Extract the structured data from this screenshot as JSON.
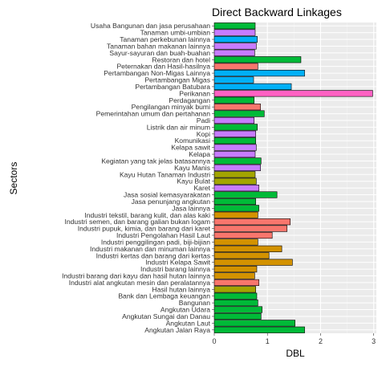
{
  "chart_data": {
    "type": "bar",
    "orientation": "horizontal",
    "title": "Direct Backward Linkages",
    "xlabel": "DBL",
    "ylabel": "Sectors",
    "xlim": [
      0,
      3.05
    ],
    "xticks": [
      "0",
      "1",
      "2",
      "3"
    ],
    "xtick_values": [
      0,
      1,
      2,
      3
    ],
    "grid": true,
    "legend": "none",
    "categories": [
      "Usaha Bangunan dan jasa perusahaan",
      "Tanaman umbi-umbian",
      "Tanaman perkebunan lainnya",
      "Tanaman bahan makanan lainnya",
      "Sayur-sayuran dan buah-buahan",
      "Restoran dan hotel",
      "Peternakan dan Hasil-hasilnya",
      "Pertambangan Non-Migas Lainnya",
      "Pertambangan Migas",
      "Pertambangan Batubara",
      "Perikanan",
      "Perdagangan",
      "Pengilangan minyak bumi",
      "Pemerintahan umum dan pertahanan",
      "Padi",
      "Listrik dan air minum",
      "Kopi",
      "Komunikasi",
      "Kelapa sawit",
      "Kelapa",
      "Kegiatan yang tak jelas batasannya",
      "Kayu Manis",
      "Kayu Hutan Tanaman Industri",
      "Kayu Bulat",
      "Karet",
      "Jasa sosial kemasyarakatan",
      "Jasa penunjang angkutan",
      "Jasa lainnya",
      "Industri tekstil, barang kulit, dan alas kaki",
      "Industri semen, dan barang galian bukan logam",
      "Industri pupuk, kimia, dan barang dari karet",
      "Industri Pengolahan Hasil Laut",
      "Industri penggilingan padi, biji-bijian",
      "Industri makanan dan minuman lainnya",
      "Industri kertas dan barang dari kertas",
      "Industri Kelapa Sawit",
      "Industri barang lainnya",
      "Industri barang dari kayu dan hasil hutan lainnya",
      "Industri alat angkutan mesin dan peralatannya",
      "Hasil hutan lainnya",
      "Bank dan Lembaga keuangan",
      "Bangunan",
      "Angkutan Udara",
      "Angkutan Sungai dan Danau",
      "Angkutan Laut",
      "Angkutan Jalan Raya"
    ],
    "values": [
      0.77,
      0.77,
      0.81,
      0.79,
      0.76,
      1.63,
      0.82,
      1.7,
      0.74,
      1.45,
      2.98,
      0.75,
      0.87,
      0.94,
      0.75,
      0.81,
      0.78,
      0.78,
      0.79,
      0.77,
      0.88,
      0.87,
      0.77,
      0.79,
      0.84,
      1.18,
      0.78,
      0.84,
      0.82,
      1.43,
      1.37,
      1.09,
      0.82,
      1.27,
      1.03,
      1.47,
      0.8,
      0.76,
      0.84,
      0.78,
      0.8,
      0.82,
      0.9,
      0.88,
      1.52,
      1.7
    ],
    "colors": [
      "#00BA38",
      "#C77CFF",
      "#00B0F6",
      "#C77CFF",
      "#C77CFF",
      "#00BA38",
      "#F8766D",
      "#00B0F6",
      "#00B0F6",
      "#00B0F6",
      "#FF61C3",
      "#00BA38",
      "#F8766D",
      "#00BA38",
      "#C77CFF",
      "#00BA38",
      "#C77CFF",
      "#00BA38",
      "#C77CFF",
      "#C77CFF",
      "#00BA38",
      "#C77CFF",
      "#A3A500",
      "#A3A500",
      "#C77CFF",
      "#00BA38",
      "#00BA38",
      "#00BA38",
      "#D39200",
      "#F8766D",
      "#F8766D",
      "#F8766D",
      "#D39200",
      "#D39200",
      "#D39200",
      "#D39200",
      "#D39200",
      "#D39200",
      "#F8766D",
      "#A3A500",
      "#00BA38",
      "#00BA38",
      "#00BA38",
      "#00BA38",
      "#00BA38",
      "#00BA38"
    ]
  }
}
